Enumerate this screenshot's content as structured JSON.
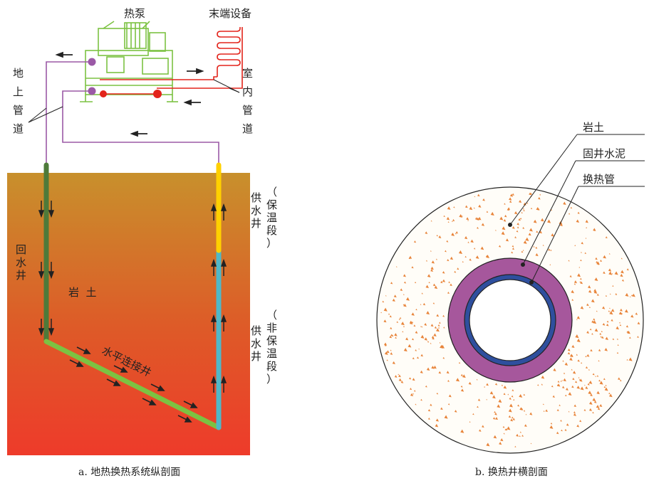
{
  "panel_a": {
    "labels": {
      "heat_pump": "热泵",
      "terminal_equipment": "末端设备",
      "ground_pipe": "地上管道",
      "indoor_pipe": "室内管道",
      "return_well": "回水井",
      "rock_soil": "岩  土",
      "horizontal_well": "水平连接井",
      "supply_well_insulated": "供水井",
      "insulated_section": "（保温段）",
      "supply_well_uninsulated": "供水井",
      "uninsulated_section": "（非保温段）"
    },
    "caption": "a. 地热换热系统纵剖面",
    "colors": {
      "ground_top": "#c8902c",
      "ground_bottom": "#ee3b2a",
      "return_well": "#4e7a3a",
      "horizontal_well": "#7cc242",
      "supply_insulated": "#ffd000",
      "supply_uninsulated": "#50b8c8",
      "ground_pipe": "#9b59a6",
      "indoor_pipe": "#e3241b",
      "heat_pump": "#7cc242"
    }
  },
  "panel_b": {
    "labels": {
      "rock_soil": "岩土",
      "cement": "固井水泥",
      "pipe": "换热管"
    },
    "caption": "b. 换热井横剖面",
    "colors": {
      "cement": "#a6579c",
      "pipe": "#2e4f9e",
      "speckle": "#e8843a"
    }
  }
}
